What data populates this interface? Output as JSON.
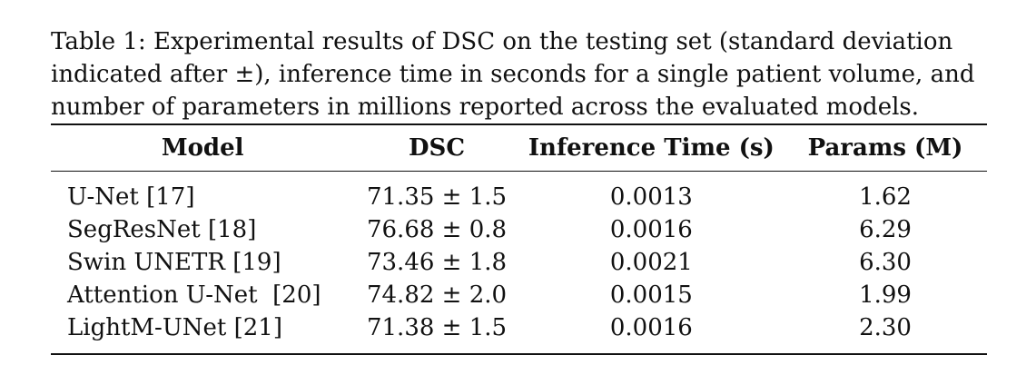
{
  "caption": {
    "lines": [
      "Table 1: Experimental results of DSC on the testing set (standard deviation",
      "indicated after ±), inference time in seconds for a single patient volume, and",
      "number of parameters in millions reported across the evaluated models."
    ]
  },
  "table": {
    "headers": [
      "Model",
      "DSC",
      "Inference Time (s)",
      "Params (M)"
    ],
    "rows": [
      [
        "U-Net [17]",
        "71.35 ± 1.5",
        "0.0013",
        "1.62"
      ],
      [
        "SegResNet [18]",
        "76.68 ± 0.8",
        "0.0016",
        "6.29"
      ],
      [
        "Swin UNETR [19]",
        "73.46 ± 1.8",
        "0.0021",
        "6.30"
      ],
      [
        "Attention U-Net  [20]",
        "74.82 ± 2.0",
        "0.0015",
        "1.99"
      ],
      [
        "LightM-UNet [21]",
        "71.38 ± 1.5",
        "0.0016",
        "2.30"
      ]
    ]
  }
}
